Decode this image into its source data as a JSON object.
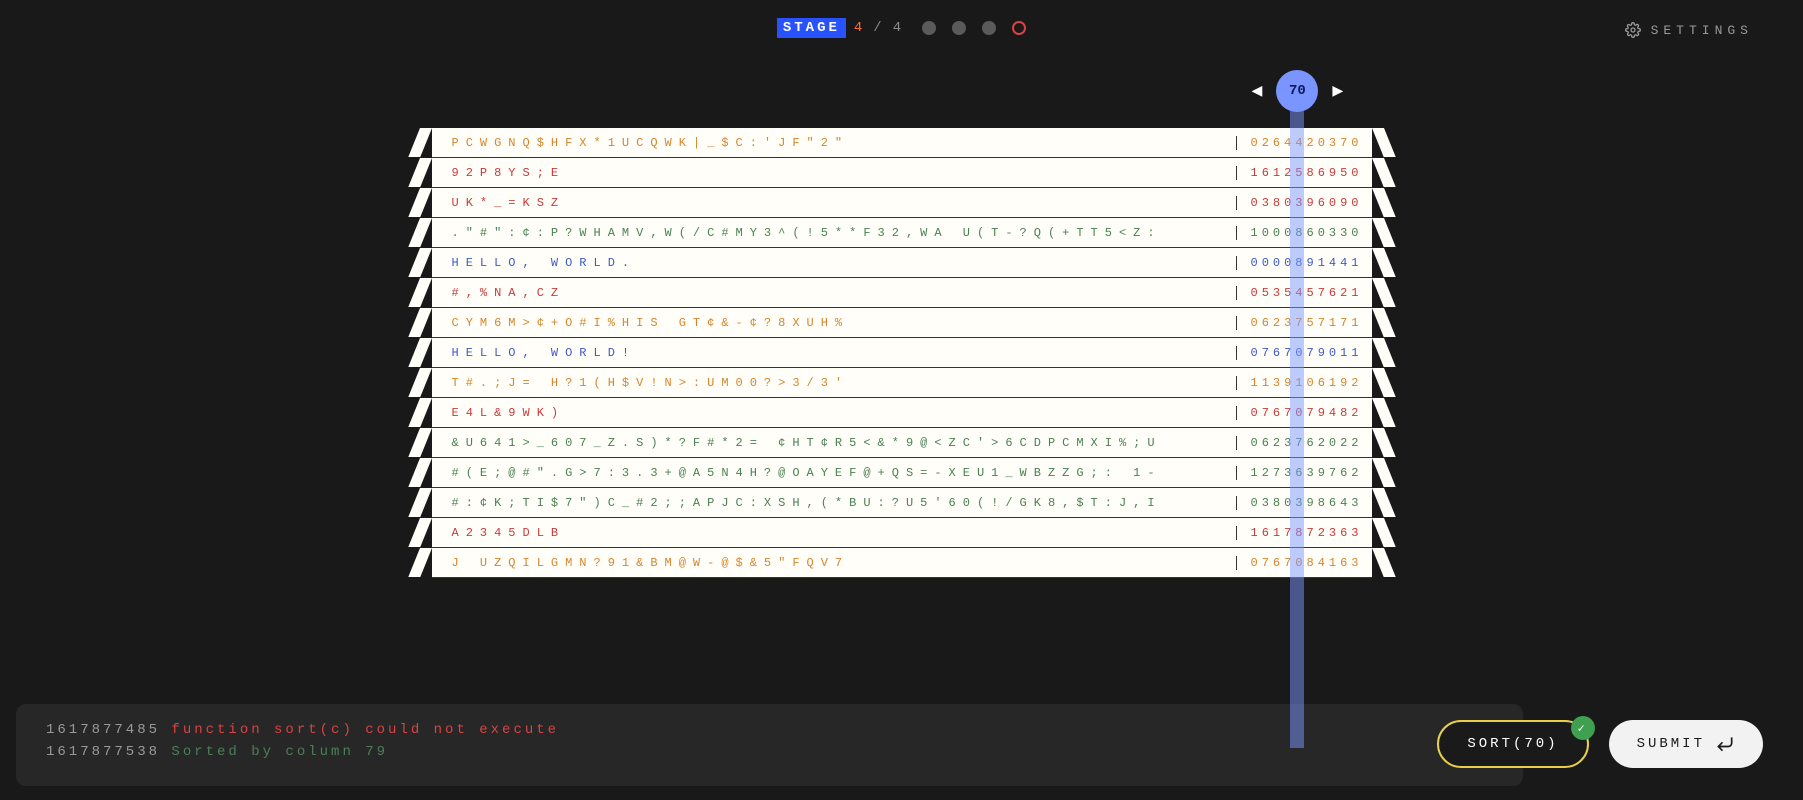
{
  "header": {
    "stage_label": "STAGE",
    "current": "4",
    "sep": "/",
    "total": "4",
    "dots": [
      {
        "type": "filled"
      },
      {
        "type": "filled"
      },
      {
        "type": "filled"
      },
      {
        "type": "ring"
      }
    ]
  },
  "settings": {
    "label": "SETTINGS"
  },
  "column_control": {
    "value": "70"
  },
  "rows": [
    {
      "left": "PCWGNQ$HFX*1UCQWK|_$C:'JF\"2\"",
      "right": "0264420370",
      "cls": "c-orange"
    },
    {
      "left": "92P8YS;E",
      "right": "1612586950",
      "cls": "c-red"
    },
    {
      "left": "UK*_=KSZ",
      "right": "0380396090",
      "cls": "c-red"
    },
    {
      "left": ".\"#\":¢:P?WHAMV,W(/C#MY3^(!5**F32,WA U(T-?Q(+TT5<Z:",
      "right": "1000860330",
      "cls": "c-green"
    },
    {
      "left": "HELLO, WORLD.",
      "right": "0000891441",
      "cls": "c-blue"
    },
    {
      "left": "#,%NA,CZ",
      "right": "0535457621",
      "cls": "c-red"
    },
    {
      "left": "CYM6M>¢+O#I%HIS GT¢&-¢?8XUH%",
      "right": "0623757171",
      "cls": "c-orange"
    },
    {
      "left": "HELLO, WORLD!",
      "right": "0767079011",
      "cls": "c-blue"
    },
    {
      "left": "T#.;J= H?1(H$V!N>:UM00?>3/3'",
      "right": "1139106192",
      "cls": "c-orange"
    },
    {
      "left": "E4L&9WK)",
      "right": "0767079482",
      "cls": "c-red"
    },
    {
      "left": "&U641>_607_Z.S)*?F#*2= ¢HT¢R5<&*9@<ZC'>6CDPCMXI%;U",
      "right": "0623762022",
      "cls": "c-green"
    },
    {
      "left": "#(E;@#\".G>7:3.3+@A5N4H?@OAYEF@+QS=-XEU1_WBZZG;: 1-",
      "right": "1273639762",
      "cls": "c-green"
    },
    {
      "left": "#:¢K;TI$7\")C_#2;;APJC:XSH,(*BU:?U5'60(!/GK8,$T:J,I",
      "right": "0380398643",
      "cls": "c-green"
    },
    {
      "left": "A2345DLB",
      "right": "1617872363",
      "cls": "c-red"
    },
    {
      "left": "J UZQILGMN?91&BM@W-@$&5\"FQV7",
      "right": "0767084163",
      "cls": "c-orange"
    }
  ],
  "console": [
    {
      "ts": "1617877485",
      "msg": "function sort(c) could not execute",
      "cls": "msg-err"
    },
    {
      "ts": "1617877538",
      "msg": "Sorted by column 79",
      "cls": "msg-ok"
    }
  ],
  "actions": {
    "sort": "SORT(70)",
    "submit": "SUBMIT"
  }
}
